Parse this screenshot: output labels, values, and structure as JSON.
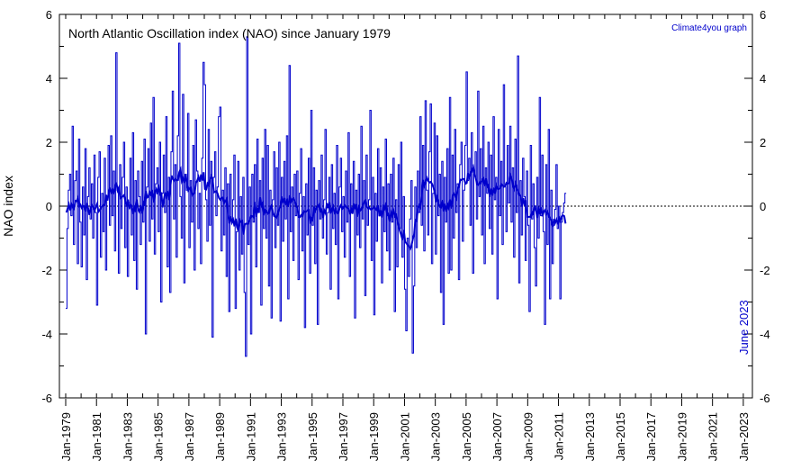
{
  "chart_data": {
    "type": "line",
    "title": "North Atlantic Oscillation index (NAO) since January 1979",
    "credit": "Climate4you graph",
    "date_note": "June 2023",
    "ylabel": "NAO index",
    "xlabel": "",
    "ylim": [
      -6,
      6
    ],
    "y_ticks": [
      -6,
      -4,
      -2,
      0,
      2,
      4,
      6
    ],
    "y_tick_labels": [
      "-6",
      "-4",
      "-2",
      "0",
      "2",
      "4",
      "6"
    ],
    "x_start": "1979-01",
    "x_end": "2023-06",
    "x_tick_labels": [
      "Jan-1979",
      "Jan-1981",
      "Jan-1983",
      "Jan-1985",
      "Jan-1987",
      "Jan-1989",
      "Jan-1991",
      "Jan-1993",
      "Jan-1995",
      "Jan-1997",
      "Jan-1999",
      "Jan-2001",
      "Jan-2003",
      "Jan-2005",
      "Jan-2007",
      "Jan-2009",
      "Jan-2011",
      "Jan-2013",
      "Jan-2015",
      "Jan-2017",
      "Jan-2019",
      "Jan-2021",
      "Jan-2023"
    ],
    "zero_line": true,
    "colors": {
      "monthly": "#0000cc",
      "running_mean": "#0000cc",
      "axis": "#000000"
    },
    "series": [
      {
        "style": "monthly-step",
        "x_start": "1979-01",
        "values": [
          -3.2,
          -0.7,
          0.5,
          1.0,
          -0.3,
          2.5,
          -1.2,
          0.8,
          1.1,
          -1.8,
          2.1,
          -0.5,
          -1.9,
          0.6,
          -0.9,
          1.8,
          -2.3,
          0.3,
          1.2,
          -0.4,
          0.7,
          -1.0,
          1.6,
          -0.2,
          -3.1,
          0.9,
          1.7,
          -1.6,
          0.4,
          -0.8,
          1.5,
          -2.0,
          0.2,
          1.9,
          -0.6,
          2.2,
          -0.3,
          1.1,
          -1.4,
          4.8,
          0.5,
          -2.1,
          1.3,
          -0.7,
          0.9,
          2.0,
          -1.3,
          0.6,
          -2.2,
          0.1,
          1.5,
          -0.9,
          2.3,
          -1.7,
          0.8,
          -2.6,
          1.1,
          0.3,
          -1.2,
          1.4,
          -0.5,
          2.1,
          -4.0,
          0.6,
          1.8,
          -1.1,
          2.6,
          -0.4,
          3.4,
          -1.5,
          0.7,
          1.2,
          -0.8,
          2.0,
          -3.0,
          0.4,
          1.6,
          -0.2,
          2.8,
          -1.9,
          0.9,
          -2.7,
          1.7,
          3.6,
          -0.4,
          1.3,
          -1.6,
          2.2,
          5.1,
          0.3,
          -1.0,
          3.5,
          -2.4,
          1.0,
          0.5,
          2.9,
          -1.3,
          0.8,
          -0.5,
          1.9,
          -2.0,
          2.7,
          1.1,
          -0.7,
          0.4,
          -1.8,
          1.5,
          4.5,
          3.8,
          0.2,
          -1.1,
          2.4,
          -0.6,
          1.4,
          -4.1,
          0.9,
          1.7,
          -0.3,
          0.6,
          2.8,
          3.1,
          -1.4,
          0.5,
          -0.9,
          1.2,
          -2.2,
          0.7,
          -3.3,
          1.0,
          -0.4,
          0.2,
          1.6,
          -3.2,
          -0.8,
          1.4,
          -2.0,
          0.3,
          -1.5,
          0.9,
          -2.7,
          -4.7,
          5.3,
          -1.2,
          0.6,
          -4.0,
          1.0,
          -0.5,
          1.3,
          -1.9,
          2.1,
          -0.2,
          0.8,
          -3.1,
          1.5,
          -0.7,
          2.4,
          -1.0,
          1.9,
          -2.5,
          0.5,
          -3.5,
          0.2,
          1.7,
          -1.3,
          1.2,
          -0.6,
          2.0,
          -3.6,
          0.9,
          -1.1,
          1.4,
          -0.4,
          2.2,
          -2.9,
          4.4,
          -0.8,
          0.6,
          -1.7,
          1.0,
          -0.3,
          1.1,
          -2.3,
          0.4,
          1.8,
          -1.4,
          0.3,
          -3.8,
          0.7,
          -0.9,
          1.5,
          -2.1,
          3.0,
          -0.6,
          1.2,
          -1.8,
          0.5,
          -3.7,
          0.8,
          -0.4,
          1.6,
          -1.0,
          0.2,
          2.4,
          -1.5,
          -0.2,
          0.9,
          -2.6,
          1.3,
          -0.7,
          0.4,
          -1.2,
          1.9,
          -2.9,
          0.6,
          1.5,
          -0.8,
          0.3,
          -1.6,
          1.1,
          -0.5,
          2.3,
          -2.2,
          0.7,
          -0.1,
          1.4,
          -3.5,
          0.5,
          -0.9,
          1.0,
          -1.3,
          2.5,
          -0.4,
          0.8,
          -2.8,
          1.6,
          -0.6,
          0.2,
          3.0,
          -1.7,
          0.9,
          -3.4,
          0.4,
          -1.1,
          1.8,
          -0.3,
          1.2,
          -2.4,
          0.6,
          -0.8,
          2.1,
          -1.4,
          0.7,
          -2.0,
          1.0,
          -0.5,
          1.5,
          -3.3,
          0.2,
          -1.9,
          1.3,
          -0.7,
          2.0,
          -1.6,
          0.3,
          -2.6,
          -3.9,
          -1.0,
          -2.2,
          -0.4,
          0.8,
          -4.6,
          -2.5,
          0.6,
          -1.3,
          1.1,
          -0.2,
          2.8,
          -0.6,
          1.9,
          -1.4,
          3.3,
          0.5,
          -0.9,
          1.7,
          3.2,
          -1.8,
          0.4,
          2.6,
          -1.5,
          2.2,
          -0.3,
          1.0,
          -2.7,
          1.4,
          -3.7,
          0.9,
          -0.5,
          1.8,
          -2.1,
          3.4,
          -2.0,
          1.6,
          -1.0,
          2.4,
          -0.2,
          0.7,
          -2.3,
          1.3,
          2.0,
          -1.1,
          0.5,
          1.9,
          4.2,
          0.8,
          1.5,
          -0.6,
          2.3,
          -2.1,
          1.0,
          1.7,
          -0.4,
          3.6,
          0.3,
          1.8,
          -0.9,
          2.5,
          -1.8,
          1.2,
          0.4,
          2.0,
          -0.7,
          1.6,
          -1.5,
          2.8,
          0.2,
          0.9,
          -2.9,
          2.4,
          -0.3,
          1.4,
          -1.2,
          3.8,
          0.6,
          -0.8,
          1.9,
          0.1,
          2.5,
          -0.5,
          1.2,
          -1.6,
          2.1,
          -0.2,
          4.7,
          -2.4,
          0.8,
          -0.9,
          1.5,
          0.3,
          -1.7,
          1.1,
          -0.6,
          -3.3,
          1.9,
          -0.4,
          0.7,
          -1.3,
          -2.5,
          0.9,
          -1.0,
          3.4,
          -0.3,
          1.6,
          -0.8,
          -3.7,
          1.3,
          -1.2,
          2.4,
          -2.9,
          0.5,
          -1.8,
          -0.6,
          -0.1,
          1.3,
          -0.7,
          0.0,
          -2.9,
          -0.5,
          -0.2,
          0.1,
          0.4
        ]
      },
      {
        "style": "running-mean",
        "window_months": 13,
        "line_width": 2
      }
    ]
  }
}
